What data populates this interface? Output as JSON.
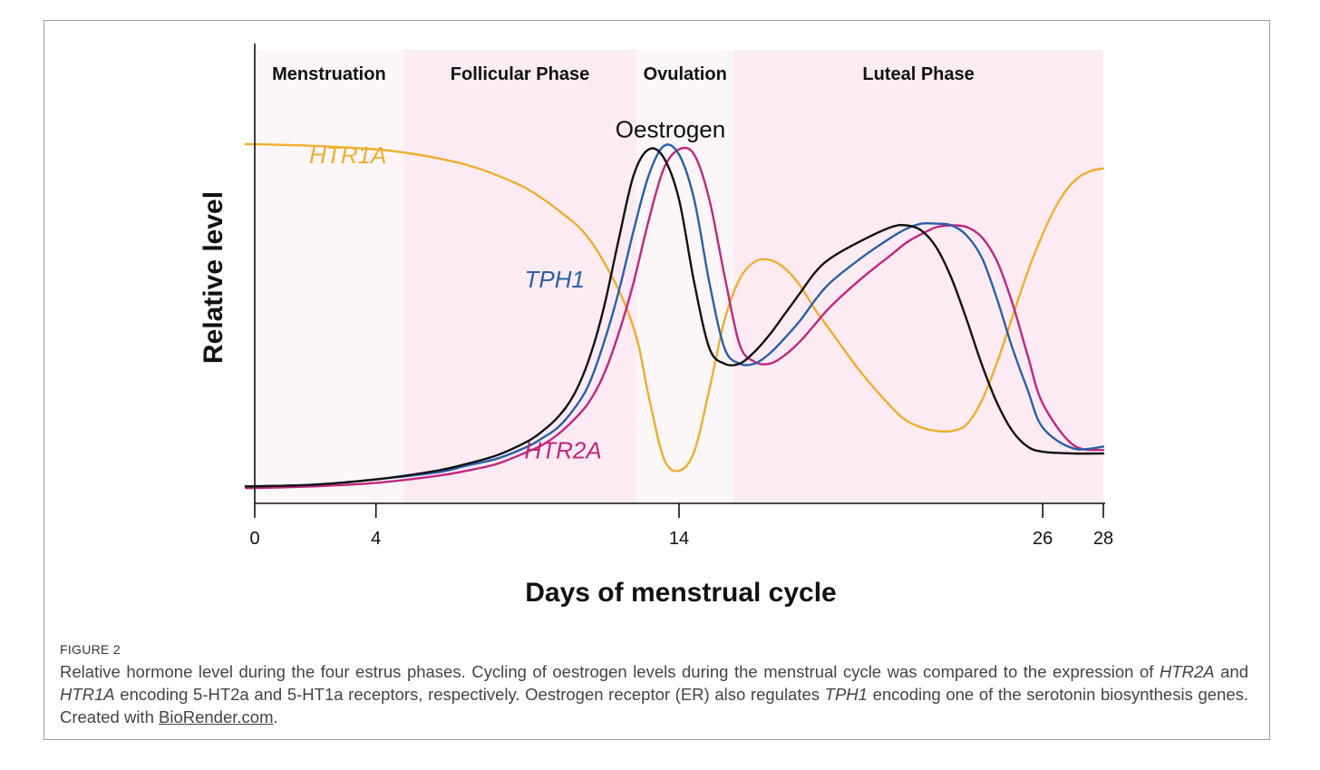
{
  "chart_data": {
    "type": "line",
    "ylabel": "Relative  level",
    "xlabel": "Days of menstrual cycle",
    "xlim": [
      0,
      28
    ],
    "ylim": [
      0,
      1
    ],
    "x_ticks": [
      {
        "value": 0,
        "label": "0"
      },
      {
        "value": 4,
        "label": "4"
      },
      {
        "value": 14,
        "label": "14"
      },
      {
        "value": 26,
        "label": "26"
      },
      {
        "value": 28,
        "label": "28"
      }
    ],
    "phases": [
      {
        "name": "Menstruation",
        "start": 0,
        "end": 4.9,
        "color": "#fdf6f9"
      },
      {
        "name": "Follicular Phase",
        "start": 4.9,
        "end": 12.6,
        "color": "#fcebf3"
      },
      {
        "name": "Ovulation",
        "start": 12.6,
        "end": 15.8,
        "color": "#fdf6f9"
      },
      {
        "name": "Luteal Phase",
        "start": 15.8,
        "end": 28,
        "color": "#fcebf3"
      }
    ],
    "series": [
      {
        "name": "HTR1A",
        "italic": true,
        "color": "#f0ae2c",
        "label_anchor": {
          "x": 1.8,
          "y": 0.945
        },
        "x": [
          -0.3,
          0,
          2,
          4,
          5,
          6,
          7,
          8,
          9,
          10,
          11,
          12,
          12.6,
          13,
          13.5,
          14,
          14.5,
          15,
          15.5,
          16,
          16.5,
          17,
          17.5,
          18,
          18.5,
          19,
          20,
          21,
          21.5,
          22,
          22.5,
          23,
          23.5,
          24,
          24.5,
          25,
          25.5,
          26,
          26.5,
          27,
          27.5,
          28
        ],
        "y": [
          1.0,
          1.0,
          0.995,
          0.985,
          0.975,
          0.96,
          0.94,
          0.91,
          0.87,
          0.81,
          0.73,
          0.58,
          0.44,
          0.27,
          0.09,
          0.055,
          0.11,
          0.29,
          0.49,
          0.61,
          0.66,
          0.665,
          0.64,
          0.59,
          0.52,
          0.46,
          0.34,
          0.24,
          0.2,
          0.18,
          0.17,
          0.17,
          0.19,
          0.26,
          0.37,
          0.5,
          0.63,
          0.74,
          0.83,
          0.89,
          0.92,
          0.93
        ]
      },
      {
        "name": "HTR2A",
        "italic": true,
        "color": "#c2267f",
        "label_anchor": {
          "x": 8.9,
          "y": 0.09
        },
        "x": [
          -0.3,
          0,
          2,
          4,
          6,
          7,
          8,
          9,
          9.5,
          10,
          10.5,
          11,
          11.5,
          12,
          12.5,
          13,
          13.5,
          14,
          14.5,
          15,
          15.5,
          16,
          16.5,
          17,
          17.5,
          18,
          18.5,
          19,
          20,
          21,
          21.5,
          22,
          22.5,
          23,
          23.5,
          24,
          24.5,
          25,
          25.5,
          26,
          27,
          28
        ],
        "y": [
          0.005,
          0.005,
          0.01,
          0.02,
          0.04,
          0.055,
          0.075,
          0.11,
          0.13,
          0.16,
          0.2,
          0.25,
          0.33,
          0.45,
          0.6,
          0.78,
          0.93,
          0.985,
          0.97,
          0.84,
          0.62,
          0.42,
          0.37,
          0.365,
          0.39,
          0.43,
          0.48,
          0.53,
          0.61,
          0.68,
          0.715,
          0.74,
          0.76,
          0.765,
          0.76,
          0.73,
          0.66,
          0.54,
          0.39,
          0.25,
          0.13,
          0.115
        ]
      },
      {
        "name": "TPH1",
        "italic": true,
        "color": "#2a5fa8",
        "label_anchor": {
          "x": 8.9,
          "y": 0.585
        },
        "x": [
          -0.3,
          0,
          2,
          4,
          6,
          7,
          8,
          9,
          9.5,
          10,
          10.5,
          11,
          11.5,
          12,
          12.5,
          13,
          13.5,
          14,
          14.5,
          15,
          15.5,
          16,
          16.5,
          17,
          17.5,
          18,
          18.5,
          19,
          20,
          21,
          21.5,
          22,
          22.5,
          23,
          23.5,
          24,
          24.5,
          25,
          25.5,
          26,
          27,
          28
        ],
        "y": [
          0.01,
          0.01,
          0.015,
          0.03,
          0.05,
          0.07,
          0.09,
          0.125,
          0.15,
          0.18,
          0.23,
          0.3,
          0.42,
          0.57,
          0.75,
          0.91,
          0.995,
          0.97,
          0.84,
          0.6,
          0.41,
          0.365,
          0.365,
          0.395,
          0.44,
          0.49,
          0.55,
          0.6,
          0.67,
          0.73,
          0.755,
          0.77,
          0.77,
          0.765,
          0.735,
          0.67,
          0.55,
          0.41,
          0.29,
          0.18,
          0.12,
          0.125
        ]
      },
      {
        "name": "Oestrogen",
        "italic": false,
        "color": "#111111",
        "label_anchor": {
          "x": 11.9,
          "y": 1.02
        },
        "x": [
          -0.3,
          0,
          2,
          4,
          6,
          7,
          8,
          9,
          9.5,
          10,
          10.5,
          11,
          11.5,
          12,
          12.5,
          13,
          13.5,
          14,
          14.5,
          15,
          15.5,
          16,
          16.5,
          17,
          17.5,
          18,
          18.5,
          19,
          20,
          21,
          21.5,
          22,
          22.5,
          23,
          23.5,
          24,
          24.5,
          25,
          25.5,
          26,
          27,
          28
        ],
        "y": [
          0.01,
          0.01,
          0.015,
          0.03,
          0.055,
          0.075,
          0.1,
          0.14,
          0.17,
          0.21,
          0.27,
          0.37,
          0.52,
          0.72,
          0.91,
          0.985,
          0.96,
          0.84,
          0.6,
          0.41,
          0.365,
          0.365,
          0.4,
          0.45,
          0.51,
          0.57,
          0.63,
          0.67,
          0.72,
          0.76,
          0.765,
          0.75,
          0.7,
          0.61,
          0.49,
          0.36,
          0.25,
          0.17,
          0.125,
          0.11,
          0.105,
          0.105
        ]
      }
    ]
  },
  "figure_label": "FIGURE 2",
  "caption": {
    "part1": "Relative hormone level during the four estrus phases. Cycling of oestrogen levels during the menstrual cycle was compared to the expression of ",
    "gene1": "HTR2A",
    "part2": " and ",
    "gene2": "HTR1A",
    "part3": " encoding 5-HT2a and 5-HT1a receptors, respectively. Oestrogen receptor (ER) also regulates ",
    "gene3": "TPH1",
    "part4": " encoding one of the serotonin biosynthesis genes. Created with ",
    "link": "BioRender.com",
    "part5": "."
  }
}
